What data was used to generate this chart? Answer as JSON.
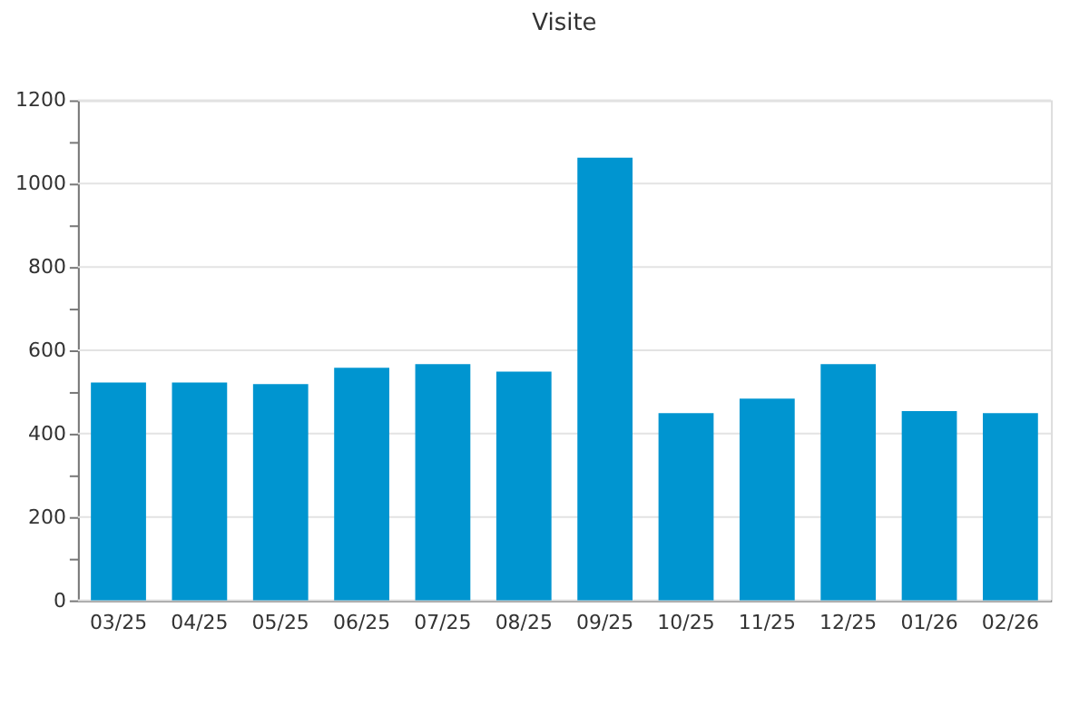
{
  "chart_data": {
    "type": "bar",
    "title": "Visite",
    "categories": [
      "03/25",
      "04/25",
      "05/25",
      "06/25",
      "07/25",
      "08/25",
      "09/25",
      "10/25",
      "11/25",
      "12/25",
      "01/26",
      "02/26"
    ],
    "values": [
      523,
      523,
      519,
      558,
      567,
      549,
      1062,
      449,
      484,
      567,
      454,
      449
    ],
    "color": "#0095d0",
    "ylim": [
      0,
      1200
    ],
    "yticks": [
      0,
      {
        "value": 100,
        "label": null
      },
      200,
      {
        "value": 300,
        "label": null
      },
      400,
      {
        "value": 500,
        "label": null
      },
      600,
      {
        "value": 700,
        "label": null
      },
      800,
      {
        "value": 900,
        "label": null
      },
      1000,
      {
        "value": 1100,
        "label": null
      },
      1200
    ],
    "grid": "y"
  }
}
